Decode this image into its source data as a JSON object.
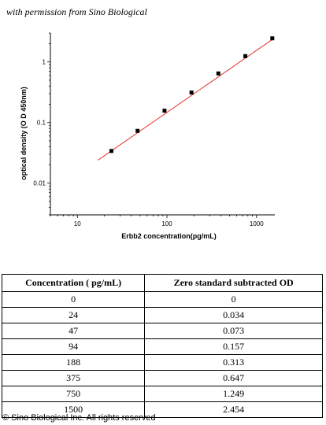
{
  "permission_note": "with permission from Sino Biological",
  "chart_data": {
    "type": "scatter",
    "xlabel": "Erbb2  concentration(pg/mL)",
    "ylabel": "optical density (O D 450nm)",
    "x_scale": "log",
    "y_scale": "log",
    "xlim": [
      5,
      1600
    ],
    "ylim": [
      0.003,
      3
    ],
    "x_ticks": [
      10,
      100,
      1000
    ],
    "x_tick_labels": [
      "10",
      "100",
      "1000"
    ],
    "y_ticks": [
      0.01,
      0.1,
      1
    ],
    "y_tick_labels": [
      "0.01",
      "0.1",
      "1"
    ],
    "points": {
      "x": [
        24,
        47,
        94,
        188,
        375,
        750,
        1500
      ],
      "y": [
        0.034,
        0.073,
        0.157,
        0.313,
        0.647,
        1.249,
        2.454
      ]
    },
    "fit_line": {
      "x": [
        17,
        1500
      ],
      "y": [
        0.024,
        2.35
      ]
    },
    "point_color": "#000000",
    "fit_color": "#e8342a",
    "grid": false
  },
  "table": {
    "headers": [
      "Concentration ( pg/mL)",
      "Zero standard subtracted OD"
    ],
    "rows": [
      [
        "0",
        "0"
      ],
      [
        "24",
        "0.034"
      ],
      [
        "47",
        "0.073"
      ],
      [
        "94",
        "0.157"
      ],
      [
        "188",
        "0.313"
      ],
      [
        "375",
        "0.647"
      ],
      [
        "750",
        "1.249"
      ],
      [
        "1500",
        "2.454"
      ]
    ]
  },
  "copyright": "© Sino Biological Inc. All rights reserved"
}
